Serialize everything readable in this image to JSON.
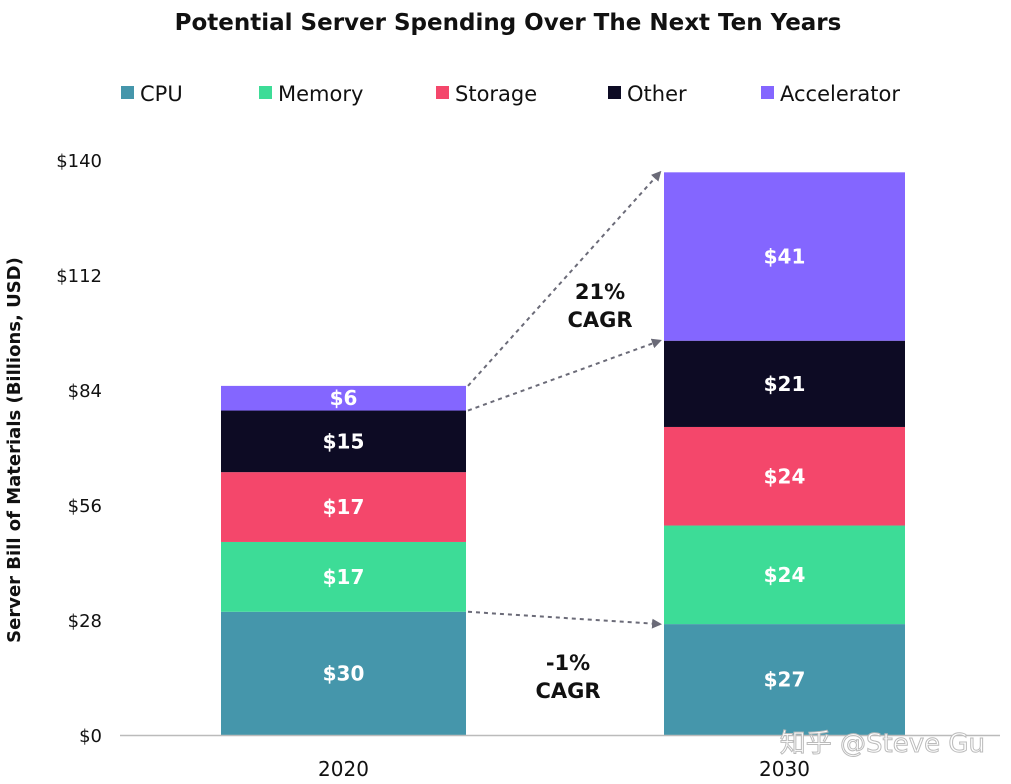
{
  "chart_data": {
    "type": "bar",
    "stacked": true,
    "title": "Potential Server Spending Over The Next Ten Years",
    "ylabel": "Server Bill of Materials (Billions, USD)",
    "xlabel": "",
    "categories": [
      "2020",
      "2030"
    ],
    "ylim": [
      0,
      140
    ],
    "yticks": [
      0,
      28,
      56,
      84,
      112,
      140
    ],
    "ytick_labels": [
      "$0",
      "$28",
      "$56",
      "$84",
      "$112",
      "$140"
    ],
    "grid": false,
    "legend_placement": "top",
    "series": [
      {
        "name": "CPU",
        "color": "#4596AB",
        "values": [
          30,
          27
        ],
        "labels": [
          "$30",
          "$27"
        ]
      },
      {
        "name": "Memory",
        "color": "#3DDC97",
        "values": [
          17,
          24
        ],
        "labels": [
          "$17",
          "$24"
        ]
      },
      {
        "name": "Storage",
        "color": "#F4476B",
        "values": [
          17,
          24
        ],
        "labels": [
          "$17",
          "$24"
        ]
      },
      {
        "name": "Other",
        "color": "#0D0B24",
        "values": [
          15,
          21
        ],
        "labels": [
          "$15",
          "$21"
        ]
      },
      {
        "name": "Accelerator",
        "color": "#8466FF",
        "values": [
          6,
          41
        ],
        "labels": [
          "$6",
          "$41"
        ]
      }
    ],
    "annotations": [
      {
        "lines": [
          "21%",
          "CAGR"
        ],
        "arrows": [
          {
            "from_stack_level": 4,
            "to_stack_level": 4
          },
          {
            "from_stack_level": 3,
            "to_stack_level": 3
          }
        ]
      },
      {
        "lines": [
          "-1%",
          "CAGR"
        ],
        "arrows": [
          {
            "from_stack_level": 0,
            "to_stack_level": 0
          }
        ]
      }
    ]
  },
  "watermark": "知乎 @Steve Gu"
}
